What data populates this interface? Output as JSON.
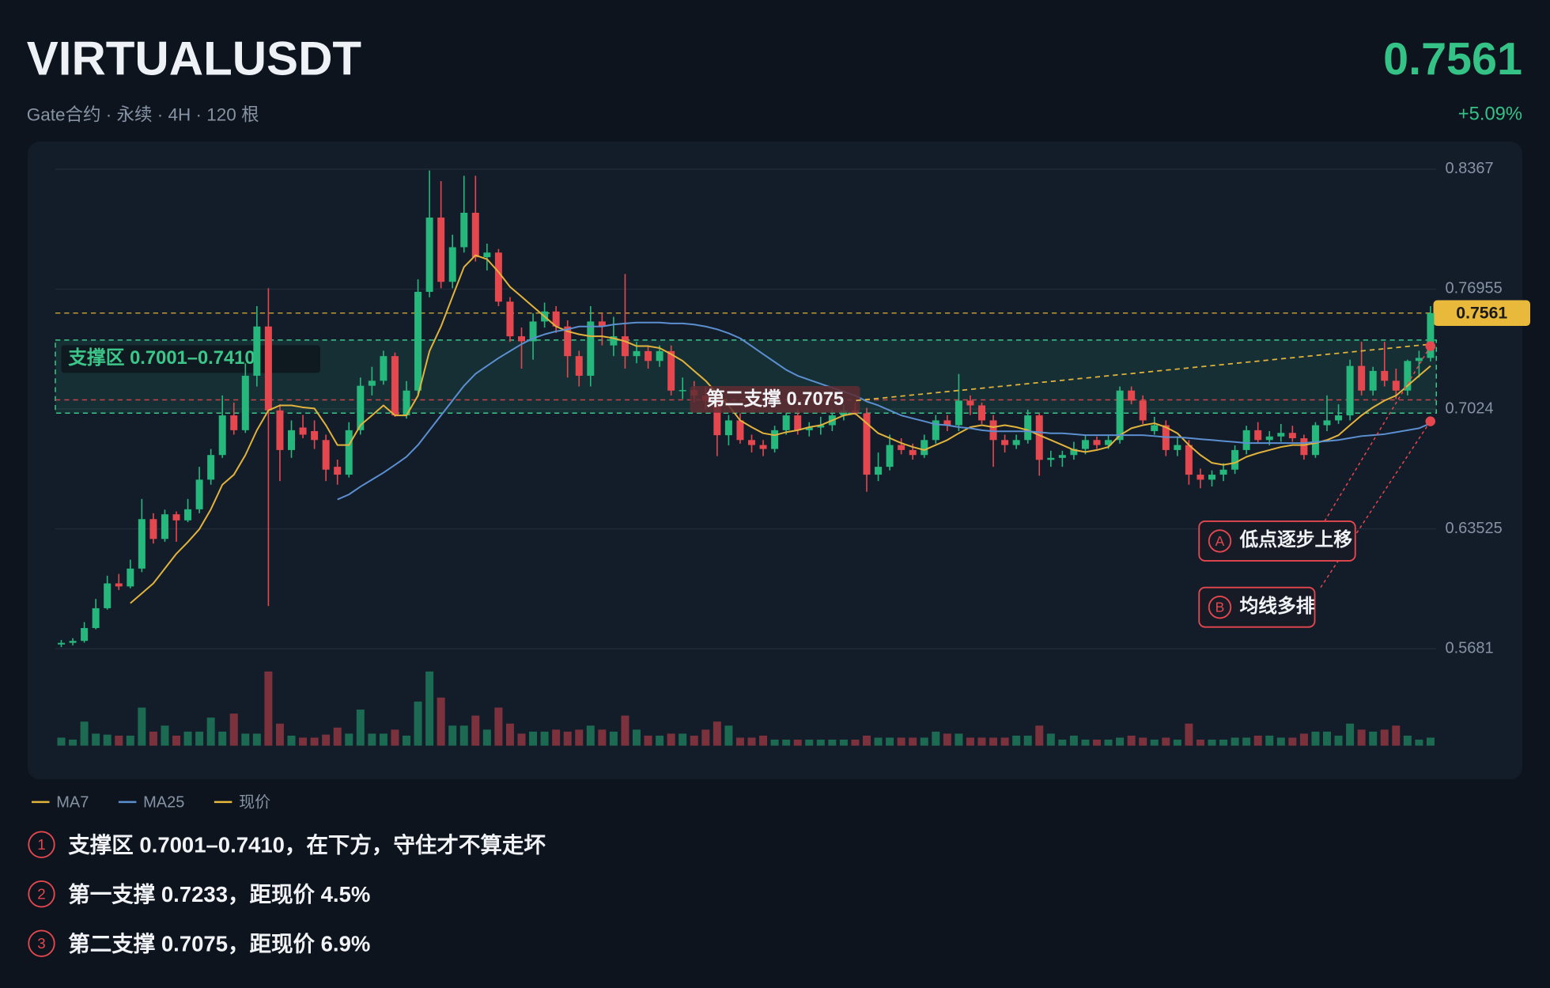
{
  "chart_data": {
    "type": "candlestick",
    "title": "VIRTUALUSDT",
    "subtitle": "Gate合约 · 永续 · 4H · 120 根",
    "change": "+5.09%",
    "up_color": "#26b77c",
    "down_color": "#e5474f",
    "ylim": [
      0.5681,
      0.8367
    ],
    "yticks": [
      0.8367,
      0.76955,
      0.7024,
      0.63525,
      0.5681
    ],
    "grid": true,
    "open": [
      0.5705,
      0.5714,
      0.5725,
      0.5797,
      0.5908,
      0.6047,
      0.603,
      0.613,
      0.6407,
      0.6296,
      0.6434,
      0.64,
      0.6462,
      0.6628,
      0.6766,
      0.6988,
      0.6905,
      0.721,
      0.7486,
      0.7016,
      0.6794,
      0.692,
      0.69,
      0.685,
      0.67,
      0.6656,
      0.6905,
      0.7154,
      0.7182,
      0.732,
      0.6988,
      0.7127,
      0.768,
      0.8096,
      0.7736,
      0.793,
      0.8123,
      0.7874,
      0.79,
      0.7625,
      0.7431,
      0.7403,
      0.7514,
      0.757,
      0.7486,
      0.732,
      0.721,
      0.7514,
      0.738,
      0.7431,
      0.732,
      0.7348,
      0.7293,
      0.7348,
      0.7127,
      0.713,
      0.7099,
      0.7071,
      0.6877,
      0.696,
      0.685,
      0.6822,
      0.68,
      0.6905,
      0.6988,
      0.6905,
      0.692,
      0.6933,
      0.6988,
      0.7016,
      0.7,
      0.6656,
      0.67,
      0.6822,
      0.6794,
      0.6766,
      0.685,
      0.696,
      0.6933,
      0.7071,
      0.7044,
      0.696,
      0.685,
      0.6822,
      0.685,
      0.6988,
      0.6739,
      0.675,
      0.6766,
      0.68,
      0.685,
      0.6822,
      0.685,
      0.7127,
      0.7071,
      0.69,
      0.6933,
      0.6794,
      0.6822,
      0.6656,
      0.6628,
      0.6656,
      0.6684,
      0.6794,
      0.6905,
      0.685,
      0.687,
      0.689,
      0.686,
      0.6766,
      0.6933,
      0.696,
      0.6988,
      0.7265,
      0.7127,
      0.7237,
      0.7182,
      0.7127,
      0.7293,
      0.731
    ],
    "high": [
      0.573,
      0.574,
      0.583,
      0.596,
      0.609,
      0.61,
      0.618,
      0.652,
      0.644,
      0.646,
      0.645,
      0.652,
      0.67,
      0.68,
      0.71,
      0.706,
      0.728,
      0.76,
      0.77,
      0.705,
      0.696,
      0.699,
      0.696,
      0.688,
      0.674,
      0.695,
      0.72,
      0.726,
      0.735,
      0.734,
      0.718,
      0.775,
      0.836,
      0.83,
      0.8,
      0.833,
      0.833,
      0.795,
      0.792,
      0.765,
      0.748,
      0.756,
      0.762,
      0.76,
      0.752,
      0.735,
      0.76,
      0.756,
      0.754,
      0.778,
      0.74,
      0.738,
      0.738,
      0.738,
      0.72,
      0.718,
      0.715,
      0.71,
      0.699,
      0.7,
      0.688,
      0.685,
      0.693,
      0.7,
      0.702,
      0.695,
      0.698,
      0.702,
      0.705,
      0.706,
      0.703,
      0.678,
      0.688,
      0.686,
      0.683,
      0.688,
      0.699,
      0.699,
      0.722,
      0.71,
      0.706,
      0.699,
      0.688,
      0.688,
      0.702,
      0.7,
      0.679,
      0.679,
      0.684,
      0.688,
      0.687,
      0.688,
      0.715,
      0.715,
      0.71,
      0.698,
      0.696,
      0.687,
      0.685,
      0.669,
      0.668,
      0.672,
      0.682,
      0.693,
      0.695,
      0.69,
      0.694,
      0.693,
      0.688,
      0.695,
      0.71,
      0.705,
      0.73,
      0.74,
      0.726,
      0.74,
      0.725,
      0.73,
      0.735,
      0.76
    ],
    "low": [
      0.569,
      0.57,
      0.5715,
      0.579,
      0.59,
      0.601,
      0.602,
      0.611,
      0.627,
      0.628,
      0.628,
      0.639,
      0.644,
      0.66,
      0.675,
      0.688,
      0.689,
      0.715,
      0.592,
      0.662,
      0.675,
      0.686,
      0.68,
      0.662,
      0.66,
      0.664,
      0.688,
      0.71,
      0.716,
      0.698,
      0.697,
      0.71,
      0.765,
      0.77,
      0.77,
      0.79,
      0.785,
      0.78,
      0.76,
      0.74,
      0.725,
      0.73,
      0.748,
      0.745,
      0.72,
      0.715,
      0.715,
      0.738,
      0.732,
      0.725,
      0.728,
      0.725,
      0.726,
      0.71,
      0.708,
      0.706,
      0.702,
      0.676,
      0.682,
      0.683,
      0.678,
      0.676,
      0.678,
      0.688,
      0.688,
      0.687,
      0.688,
      0.69,
      0.696,
      0.699,
      0.656,
      0.662,
      0.668,
      0.677,
      0.674,
      0.675,
      0.683,
      0.69,
      0.69,
      0.699,
      0.694,
      0.67,
      0.678,
      0.68,
      0.683,
      0.665,
      0.67,
      0.67,
      0.674,
      0.677,
      0.68,
      0.68,
      0.683,
      0.705,
      0.694,
      0.688,
      0.676,
      0.676,
      0.66,
      0.658,
      0.659,
      0.662,
      0.666,
      0.677,
      0.683,
      0.682,
      0.684,
      0.684,
      0.674,
      0.675,
      0.69,
      0.694,
      0.696,
      0.71,
      0.71,
      0.715,
      0.708,
      0.71,
      0.72,
      0.729
    ],
    "close": [
      0.5714,
      0.5725,
      0.5797,
      0.5908,
      0.6047,
      0.603,
      0.613,
      0.6407,
      0.6296,
      0.6434,
      0.64,
      0.6462,
      0.6628,
      0.6766,
      0.6988,
      0.6905,
      0.721,
      0.7486,
      0.7016,
      0.6794,
      0.6905,
      0.688,
      0.685,
      0.6684,
      0.6656,
      0.6905,
      0.7154,
      0.7182,
      0.732,
      0.6988,
      0.7127,
      0.768,
      0.8096,
      0.7736,
      0.793,
      0.8123,
      0.7874,
      0.79,
      0.7625,
      0.7431,
      0.7403,
      0.7514,
      0.757,
      0.7486,
      0.732,
      0.721,
      0.7514,
      0.7486,
      0.7431,
      0.732,
      0.7348,
      0.7293,
      0.7348,
      0.7127,
      0.713,
      0.7099,
      0.7071,
      0.6877,
      0.696,
      0.685,
      0.6822,
      0.68,
      0.6905,
      0.6988,
      0.6905,
      0.692,
      0.6933,
      0.6988,
      0.7016,
      0.7,
      0.6656,
      0.67,
      0.6822,
      0.6794,
      0.6766,
      0.685,
      0.696,
      0.6933,
      0.7071,
      0.7044,
      0.696,
      0.685,
      0.6822,
      0.685,
      0.6988,
      0.6739,
      0.675,
      0.6766,
      0.68,
      0.685,
      0.6822,
      0.685,
      0.7127,
      0.7071,
      0.696,
      0.6933,
      0.6794,
      0.6822,
      0.6656,
      0.6628,
      0.6656,
      0.6684,
      0.6794,
      0.6905,
      0.685,
      0.687,
      0.689,
      0.686,
      0.6766,
      0.6933,
      0.696,
      0.6988,
      0.7265,
      0.7127,
      0.7237,
      0.7182,
      0.7127,
      0.7293,
      0.731,
      0.7561
    ],
    "volume": [
      8,
      6,
      24,
      12,
      11,
      10,
      10,
      38,
      14,
      20,
      10,
      14,
      14,
      28,
      14,
      32,
      12,
      12,
      74,
      22,
      10,
      8,
      8,
      11,
      18,
      12,
      36,
      12,
      12,
      16,
      10,
      44,
      74,
      48,
      20,
      20,
      30,
      16,
      38,
      22,
      12,
      14,
      14,
      16,
      14,
      16,
      20,
      16,
      14,
      30,
      16,
      10,
      10,
      12,
      12,
      10,
      16,
      24,
      20,
      8,
      8,
      10,
      6,
      6,
      6,
      6,
      6,
      6,
      6,
      6,
      10,
      8,
      8,
      8,
      8,
      8,
      14,
      12,
      12,
      8,
      8,
      8,
      8,
      10,
      10,
      20,
      12,
      6,
      10,
      6,
      6,
      6,
      8,
      10,
      8,
      6,
      8,
      6,
      22,
      6,
      6,
      6,
      8,
      8,
      10,
      10,
      8,
      8,
      12,
      14,
      14,
      10,
      22,
      16,
      14,
      16,
      20,
      10,
      6,
      8
    ],
    "series": [
      {
        "name": "MA7",
        "color": "#e2b33c",
        "values": [
          null,
          null,
          null,
          null,
          null,
          null,
          0.5936,
          0.5991,
          0.6047,
          0.613,
          0.6213,
          0.6279,
          0.6351,
          0.6462,
          0.66,
          0.6656,
          0.6766,
          0.6905,
          0.7016,
          0.7044,
          0.7044,
          0.7033,
          0.7027,
          0.6933,
          0.6822,
          0.6822,
          0.6933,
          0.6988,
          0.7044,
          0.6988,
          0.6988,
          0.7099,
          0.7348,
          0.7486,
          0.7653,
          0.7819,
          0.7885,
          0.7863,
          0.7791,
          0.7708,
          0.7653,
          0.7597,
          0.7542,
          0.7486,
          0.7459,
          0.7442,
          0.7431,
          0.7431,
          0.742,
          0.7403,
          0.7376,
          0.7376,
          0.7365,
          0.7331,
          0.7293,
          0.7237,
          0.7182,
          0.711,
          0.7044,
          0.696,
          0.6922,
          0.6888,
          0.6877,
          0.6894,
          0.6905,
          0.6922,
          0.6933,
          0.696,
          0.6988,
          0.6999,
          0.6944,
          0.6888,
          0.6861,
          0.6833,
          0.6811,
          0.6794,
          0.6822,
          0.685,
          0.6888,
          0.6922,
          0.6933,
          0.6922,
          0.6933,
          0.6922,
          0.6905,
          0.6877,
          0.685,
          0.6822,
          0.6794,
          0.6783,
          0.6794,
          0.6811,
          0.6877,
          0.6916,
          0.6933,
          0.6944,
          0.6922,
          0.6888,
          0.6822,
          0.6766,
          0.6722,
          0.6711,
          0.6722,
          0.6756,
          0.6777,
          0.6794,
          0.6811,
          0.6822,
          0.6822,
          0.6833,
          0.685,
          0.6877,
          0.6933,
          0.6988,
          0.7033,
          0.7071,
          0.7099,
          0.7154,
          0.721,
          0.7265
        ]
      },
      {
        "name": "MA25",
        "color": "#5b8fd0",
        "values": [
          null,
          null,
          null,
          null,
          null,
          null,
          null,
          null,
          null,
          null,
          null,
          null,
          null,
          null,
          null,
          null,
          null,
          null,
          null,
          null,
          null,
          null,
          null,
          null,
          0.6517,
          0.6545,
          0.6589,
          0.6628,
          0.6667,
          0.6711,
          0.6756,
          0.6822,
          0.6905,
          0.6988,
          0.7071,
          0.7154,
          0.7221,
          0.7265,
          0.7309,
          0.7348,
          0.7387,
          0.742,
          0.7442,
          0.7459,
          0.747,
          0.7486,
          0.7486,
          0.7486,
          0.7497,
          0.7503,
          0.7508,
          0.7508,
          0.7508,
          0.7503,
          0.7503,
          0.7497,
          0.7486,
          0.747,
          0.7448,
          0.742,
          0.7376,
          0.7331,
          0.7287,
          0.7243,
          0.721,
          0.7187,
          0.7165,
          0.7143,
          0.7121,
          0.7099,
          0.7066,
          0.7044,
          0.7016,
          0.6988,
          0.6971,
          0.6955,
          0.6938,
          0.6933,
          0.6922,
          0.6916,
          0.6905,
          0.6899,
          0.6899,
          0.6899,
          0.6899,
          0.6894,
          0.6888,
          0.6888,
          0.6883,
          0.6877,
          0.6877,
          0.6877,
          0.6877,
          0.6877,
          0.6877,
          0.6872,
          0.6866,
          0.6866,
          0.6861,
          0.6855,
          0.685,
          0.6844,
          0.6839,
          0.6833,
          0.6833,
          0.6833,
          0.6833,
          0.6833,
          0.6833,
          0.6839,
          0.6844,
          0.685,
          0.6861,
          0.6872,
          0.6877,
          0.6883,
          0.6894,
          0.6905,
          0.6916,
          0.6944
        ]
      }
    ],
    "current_price": {
      "name": "现价",
      "color": "#e8b93a",
      "value": 0.7561
    },
    "support_zone": {
      "label": "支撑区 0.7001–0.7410",
      "low": 0.7001,
      "high": 0.741
    },
    "second_support": {
      "label": "第二支撑 0.7075",
      "value": 0.7075
    },
    "annotations": [
      {
        "marker": "A",
        "text": "低点逐步上移"
      },
      {
        "marker": "B",
        "text": "均线多排"
      }
    ],
    "notes": [
      {
        "marker": "1",
        "text": "支撑区 0.7001–0.7410，在下方，守住才不算走坏"
      },
      {
        "marker": "2",
        "text": "第一支撑 0.7233，距现价 4.5%"
      },
      {
        "marker": "3",
        "text": "第二支撑 0.7075，距现价 6.9%"
      }
    ]
  }
}
